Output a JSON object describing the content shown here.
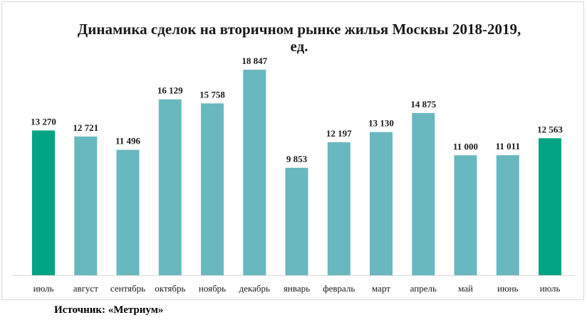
{
  "chart_data": {
    "type": "bar",
    "title_line1": "Динамика сделок на вторичном рынке жилья Москвы 2018-2019,",
    "title_line2": "ед.",
    "categories": [
      "июль",
      "август",
      "сентябрь",
      "октябрь",
      "ноябрь",
      "декабрь",
      "январь",
      "февраль",
      "март",
      "апрель",
      "май",
      "июнь",
      "июль"
    ],
    "values": [
      13270,
      12721,
      11496,
      16129,
      15758,
      18847,
      9853,
      12197,
      13130,
      14875,
      11000,
      11011,
      12563
    ],
    "value_labels": [
      "13 270",
      "12 721",
      "11 496",
      "16 129",
      "15 758",
      "18 847",
      "9 853",
      "12 197",
      "13 130",
      "14 875",
      "11 000",
      "11 011",
      "12 563"
    ],
    "highlighted": [
      true,
      false,
      false,
      false,
      false,
      false,
      false,
      false,
      false,
      false,
      false,
      false,
      true
    ],
    "ylim": [
      0,
      18847
    ],
    "grid": false,
    "legend": "none",
    "colors": {
      "bar": "#69b8c0",
      "highlight": "#00a384",
      "axis": "#d9d9d9"
    }
  },
  "source": "Источник: «Метриум»"
}
